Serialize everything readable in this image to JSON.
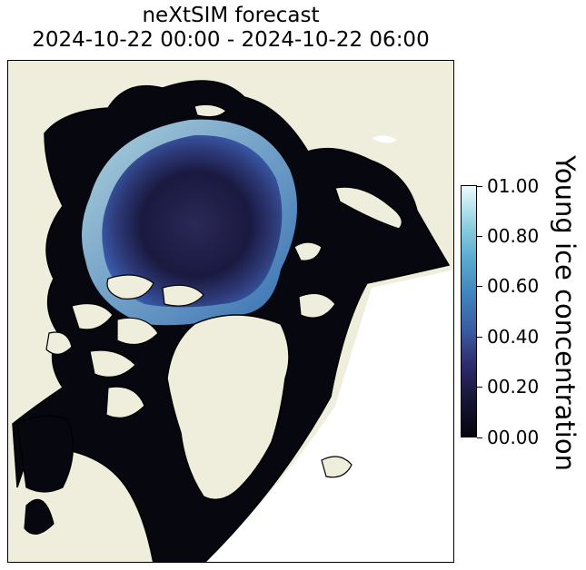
{
  "title": {
    "line1": "neXtSIM forecast",
    "line2": "2024-10-22 00:00 - 2024-10-22 06:00"
  },
  "colorbar": {
    "label": "Young ice concentration",
    "ticks": [
      {
        "value": 0.0,
        "label": "00.00"
      },
      {
        "value": 0.2,
        "label": "00.20"
      },
      {
        "value": 0.4,
        "label": "00.40"
      },
      {
        "value": 0.6,
        "label": "00.60"
      },
      {
        "value": 0.8,
        "label": "00.80"
      },
      {
        "value": 1.0,
        "label": "01.00"
      }
    ]
  },
  "colors": {
    "land": "#efeedd",
    "ocean_no_data": "#ffffff",
    "ice_dark": "#0a0a1a",
    "ice_deep": "#22214a",
    "young_ice": "#4a8fd0",
    "young_ice_bright": "#cfeffa",
    "coastline": "#000000"
  }
}
